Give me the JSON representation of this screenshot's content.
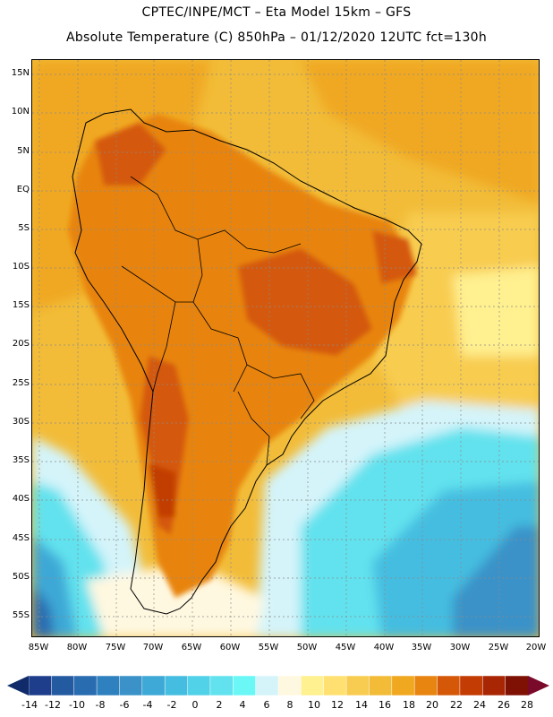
{
  "header": {
    "line1": "CPTEC/INPE/MCT –  Eta Model 15km – GFS",
    "line2": "Absolute Temperature (C) 850hPa – 01/12/2020 12UTC fct=130h"
  },
  "map": {
    "region": "South America",
    "variable": "Absolute Temperature (C) 850hPa",
    "lat_ticks": [
      "15N",
      "10N",
      "5N",
      "EQ",
      "5S",
      "10S",
      "15S",
      "20S",
      "25S",
      "30S",
      "35S",
      "40S",
      "45S",
      "50S",
      "55S"
    ],
    "lon_ticks": [
      "85W",
      "80W",
      "75W",
      "70W",
      "65W",
      "60W",
      "55W",
      "50W",
      "45W",
      "40W",
      "35W",
      "30W",
      "25W",
      "20W"
    ]
  },
  "colorbar": {
    "labels": [
      "-14",
      "-12",
      "-10",
      "-8",
      "-6",
      "-4",
      "-2",
      "0",
      "2",
      "4",
      "6",
      "8",
      "10",
      "12",
      "14",
      "16",
      "18",
      "20",
      "22",
      "24",
      "26",
      "28"
    ],
    "low_arrow_color": "#102a6a",
    "high_arrow_color": "#7a0a2a",
    "colors": [
      "#1e3e8c",
      "#245aa0",
      "#2a6cb0",
      "#2f80be",
      "#3a92c8",
      "#3ea8d6",
      "#45bde0",
      "#52d2e8",
      "#62e2ee",
      "#6cf7f7",
      "#d4f4fa",
      "#fff8e0",
      "#fff090",
      "#ffe070",
      "#f8cc50",
      "#f2bc38",
      "#f0a820",
      "#e88410",
      "#d45808",
      "#c23c04",
      "#a82604",
      "#7e1004"
    ]
  }
}
